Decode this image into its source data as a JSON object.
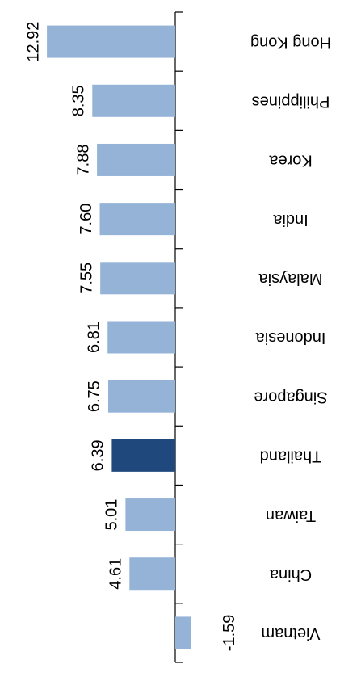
{
  "chart_data": {
    "type": "bar",
    "categories": [
      "Hong Kong",
      "Philippines",
      "Korea",
      "India",
      "Malaysia",
      "Indonesia",
      "Singapore",
      "Thailand",
      "Taiwan",
      "China",
      "Vietnam"
    ],
    "values": [
      12.92,
      8.35,
      7.88,
      7.6,
      7.55,
      6.81,
      6.75,
      6.39,
      5.01,
      4.61,
      -1.59
    ],
    "value_labels": [
      "12.92",
      "8.35",
      "7.88",
      "7.60",
      "7.55",
      "6.81",
      "6.75",
      "6.39",
      "5.01",
      "4.61",
      "-1.59"
    ],
    "colors": [
      "#95b3d7",
      "#95b3d7",
      "#95b3d7",
      "#95b3d7",
      "#95b3d7",
      "#95b3d7",
      "#95b3d7",
      "#1f497d",
      "#95b3d7",
      "#95b3d7",
      "#95b3d7"
    ],
    "ylim": [
      -5,
      15
    ]
  }
}
